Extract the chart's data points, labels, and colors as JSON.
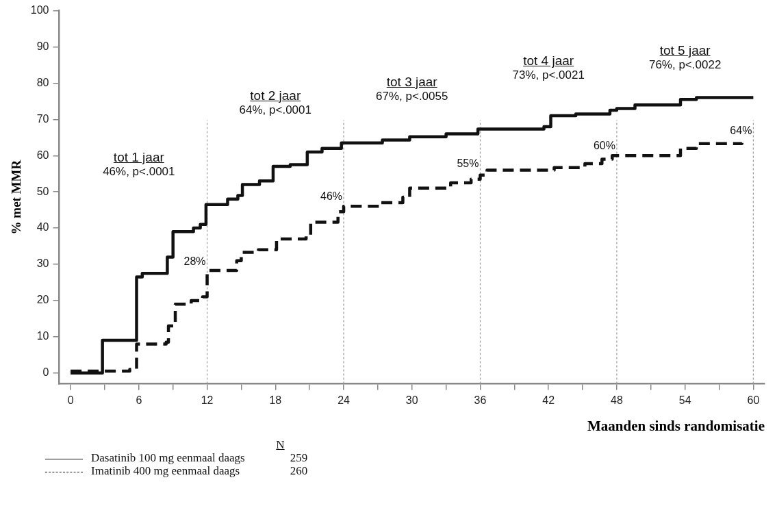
{
  "chart_data": {
    "type": "step",
    "xlabel": "Maanden sinds randomisatie",
    "ylabel": "% met MMR",
    "xlim": [
      -1,
      61
    ],
    "ylim": [
      -3,
      100
    ],
    "xticks": [
      0,
      {
        "value": 3,
        "label": null
      },
      6,
      {
        "value": 9,
        "label": null
      },
      12,
      {
        "value": 15,
        "label": null
      },
      18,
      {
        "value": 21,
        "label": null
      },
      24,
      {
        "value": 27,
        "label": null
      },
      30,
      {
        "value": 33,
        "label": null
      },
      36,
      {
        "value": 39,
        "label": null
      },
      42,
      {
        "value": 45,
        "label": null
      },
      48,
      {
        "value": 51,
        "label": null
      },
      54,
      {
        "value": 57,
        "label": null
      },
      60
    ],
    "yticks": [
      0,
      10,
      20,
      30,
      40,
      50,
      60,
      70,
      80,
      90,
      100
    ],
    "grid": false,
    "legend": "bottom left",
    "marker": "none",
    "series": [
      {
        "name": "Dasatinib 100 mg eenmaal daags",
        "color": "#111111",
        "line_style": "solid",
        "x": [
          0,
          2.8,
          5.8,
          6.3,
          8.5,
          9.0,
          10.8,
          11.4,
          11.9,
          13.8,
          14.7,
          15.1,
          16.6,
          17.8,
          19.3,
          20.8,
          22.1,
          23.8,
          27.4,
          29.8,
          33,
          35.8,
          41.6,
          42.2,
          44.4,
          47.4,
          48,
          49.6,
          53.6,
          55,
          60
        ],
        "values": [
          0,
          9,
          26.5,
          27.5,
          32,
          39,
          40,
          41,
          46.5,
          48,
          49,
          52,
          53,
          57,
          57.5,
          61,
          62,
          63.5,
          64.3,
          65.2,
          66,
          67.3,
          68,
          71,
          71.5,
          72.5,
          73,
          74,
          75.5,
          76,
          76
        ]
      },
      {
        "name": "Imatinib 400 mg eenmaal daags",
        "color": "#111111",
        "line_style": "dashed",
        "x": [
          0,
          5.2,
          5.8,
          8.4,
          8.6,
          9.2,
          10.6,
          11.6,
          12,
          14.6,
          15,
          16.5,
          18.1,
          20.7,
          21.1,
          23.5,
          24,
          27.2,
          29.2,
          29.8,
          33.4,
          35.2,
          36,
          36.6,
          42.5,
          45.2,
          46.7,
          47.6,
          53.6,
          55,
          59
        ],
        "values": [
          0.5,
          1,
          8,
          8.5,
          13,
          19,
          20,
          21,
          28.3,
          31,
          33.3,
          34,
          37,
          38,
          41.6,
          44.5,
          46,
          47,
          48.5,
          51,
          52.5,
          53.5,
          54.6,
          56,
          56.7,
          57.8,
          59,
          60,
          62,
          63.3,
          63.5
        ]
      }
    ],
    "ref_lines": [
      {
        "axis": "x",
        "value": 12,
        "color": "#999999",
        "line_style": "dotted"
      },
      {
        "axis": "x",
        "value": 24,
        "color": "#999999",
        "line_style": "dotted"
      },
      {
        "axis": "x",
        "value": 36,
        "color": "#999999",
        "line_style": "dotted"
      },
      {
        "axis": "x",
        "value": 48,
        "color": "#999999",
        "line_style": "dotted"
      },
      {
        "axis": "x",
        "value": 60,
        "color": "#999999",
        "line_style": "dotted"
      }
    ],
    "annotations": [
      "tot 1 jaar",
      "46%, p<.0001",
      "tot 2 jaar",
      "64%, p<.0001",
      "tot 3 jaar",
      "67%, p<.0055",
      "tot 4 jaar",
      "73%, p<.0021",
      "tot 5 jaar",
      "76%, p<.0022",
      {
        "text": "28%",
        "x": 12,
        "y": 28
      },
      {
        "text": "46%",
        "x": 24,
        "y": 46
      },
      {
        "text": "55%",
        "x": 36,
        "y": 55
      },
      {
        "text": "60%",
        "x": 48,
        "y": 60
      },
      {
        "text": "64%",
        "x": 60,
        "y": 64
      },
      "N",
      "259",
      "260"
    ]
  }
}
